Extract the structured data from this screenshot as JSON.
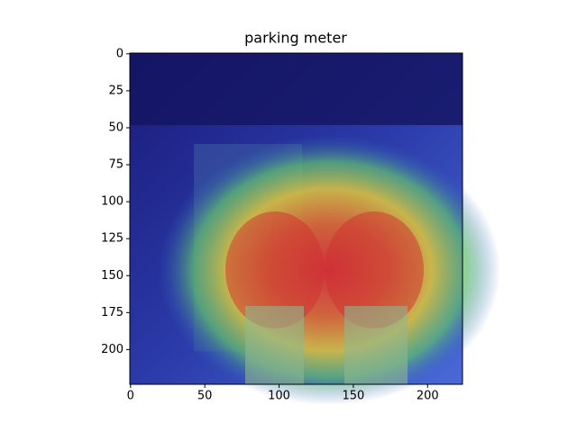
{
  "chart_data": {
    "type": "image",
    "title": "parking meter",
    "xlim": [
      -0.5,
      223.5
    ],
    "xticks": [
      0,
      50,
      100,
      150,
      200
    ],
    "ylim": [
      223.5,
      -0.5
    ],
    "yticks": [
      0,
      25,
      50,
      75,
      100,
      125,
      150,
      175,
      200
    ]
  }
}
